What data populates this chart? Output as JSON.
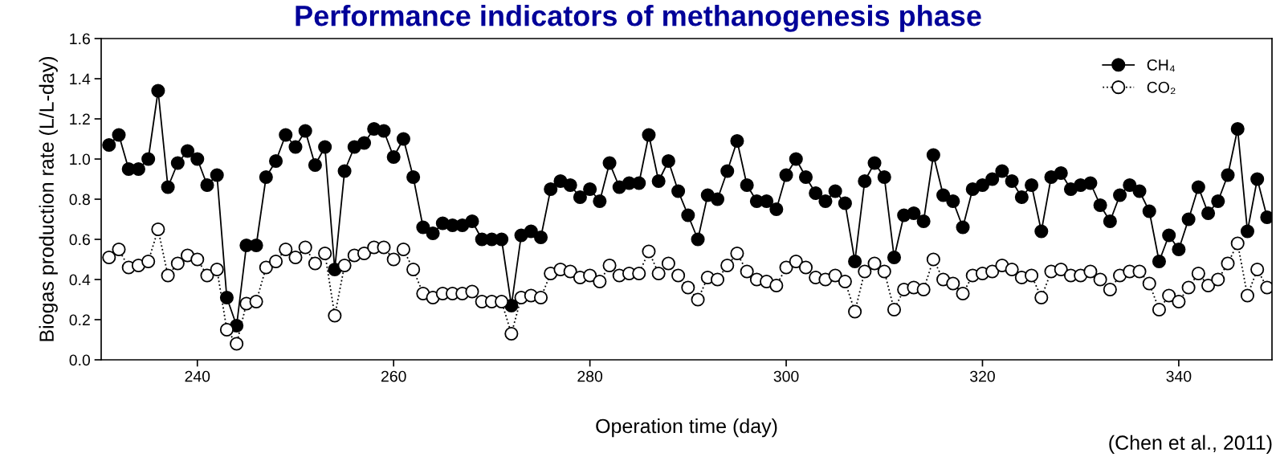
{
  "chart_data": {
    "type": "line",
    "title": "Performance indicators of methanogenesis phase",
    "xlabel": "Operation time (day)",
    "ylabel": "Biogas production rate (L/L-day)",
    "annotations": [
      "(Chen et al., 2011)"
    ],
    "x": [
      231,
      232,
      233,
      234,
      235,
      236,
      237,
      238,
      239,
      240,
      241,
      242,
      243,
      244,
      245,
      246,
      247,
      248,
      249,
      250,
      251,
      252,
      253,
      254,
      255,
      256,
      257,
      258,
      259,
      260,
      261,
      262,
      263,
      264,
      265,
      266,
      267,
      268,
      269,
      270,
      271,
      272,
      273,
      274,
      275,
      276,
      277,
      278,
      279,
      280,
      281,
      282,
      283,
      284,
      285,
      286,
      287,
      288,
      289,
      290,
      291,
      292,
      293,
      294,
      295,
      296,
      297,
      298,
      299,
      300,
      301,
      302,
      303,
      304,
      305,
      306,
      307,
      308,
      309,
      310,
      311,
      312,
      313,
      314,
      315,
      316,
      317,
      318,
      319,
      320,
      321,
      322,
      323,
      324,
      325,
      326,
      327,
      328,
      329,
      330,
      331,
      332,
      333,
      334,
      335,
      336,
      337,
      338,
      339,
      340,
      341,
      342,
      343,
      344,
      345,
      346,
      347,
      348,
      349
    ],
    "series": [
      {
        "name": "CH₄",
        "color": "#000000",
        "line_style": "solid",
        "values": [
          1.07,
          1.12,
          0.95,
          0.95,
          1.0,
          1.34,
          0.86,
          0.98,
          1.04,
          1.0,
          0.87,
          0.92,
          0.31,
          0.17,
          0.57,
          0.57,
          0.91,
          0.99,
          1.12,
          1.06,
          1.14,
          0.97,
          1.06,
          0.45,
          0.94,
          1.06,
          1.08,
          1.15,
          1.14,
          1.01,
          1.1,
          0.91,
          0.66,
          0.63,
          0.68,
          0.67,
          0.67,
          0.69,
          0.6,
          0.6,
          0.6,
          0.27,
          0.62,
          0.64,
          0.61,
          0.85,
          0.89,
          0.87,
          0.81,
          0.85,
          0.79,
          0.98,
          0.86,
          0.88,
          0.88,
          1.12,
          0.89,
          0.99,
          0.84,
          0.72,
          0.6,
          0.82,
          0.8,
          0.94,
          1.09,
          0.87,
          0.79,
          0.79,
          0.75,
          0.92,
          1.0,
          0.91,
          0.83,
          0.79,
          0.84,
          0.78,
          0.49,
          0.89,
          0.98,
          0.91,
          0.51,
          0.72,
          0.73,
          0.69,
          1.02,
          0.82,
          0.79,
          0.66,
          0.85,
          0.87,
          0.9,
          0.94,
          0.89,
          0.81,
          0.87,
          0.64,
          0.91,
          0.93,
          0.85,
          0.87,
          0.88,
          0.77,
          0.69,
          0.82,
          0.87,
          0.84,
          0.74,
          0.49,
          0.62,
          0.55,
          0.7,
          0.86,
          0.73,
          0.79,
          0.92,
          1.15,
          0.64,
          0.9,
          0.71
        ]
      },
      {
        "name": "CO₂",
        "color": "#ffffff",
        "line_style": "dotted",
        "values": [
          0.51,
          0.55,
          0.46,
          0.47,
          0.49,
          0.65,
          0.42,
          0.48,
          0.52,
          0.5,
          0.42,
          0.45,
          0.15,
          0.08,
          0.28,
          0.29,
          0.46,
          0.49,
          0.55,
          0.51,
          0.56,
          0.48,
          0.53,
          0.22,
          0.47,
          0.52,
          0.53,
          0.56,
          0.56,
          0.5,
          0.55,
          0.45,
          0.33,
          0.31,
          0.33,
          0.33,
          0.33,
          0.34,
          0.29,
          0.29,
          0.29,
          0.13,
          0.31,
          0.32,
          0.31,
          0.43,
          0.45,
          0.44,
          0.41,
          0.42,
          0.39,
          0.47,
          0.42,
          0.43,
          0.43,
          0.54,
          0.43,
          0.48,
          0.42,
          0.36,
          0.3,
          0.41,
          0.4,
          0.47,
          0.53,
          0.44,
          0.4,
          0.39,
          0.37,
          0.46,
          0.49,
          0.46,
          0.41,
          0.4,
          0.42,
          0.39,
          0.24,
          0.44,
          0.48,
          0.44,
          0.25,
          0.35,
          0.36,
          0.35,
          0.5,
          0.4,
          0.38,
          0.33,
          0.42,
          0.43,
          0.44,
          0.47,
          0.45,
          0.41,
          0.42,
          0.31,
          0.44,
          0.45,
          0.42,
          0.42,
          0.44,
          0.4,
          0.35,
          0.42,
          0.44,
          0.44,
          0.38,
          0.25,
          0.32,
          0.29,
          0.36,
          0.43,
          0.37,
          0.4,
          0.48,
          0.58,
          0.32,
          0.45,
          0.36
        ]
      }
    ],
    "xlim": [
      230.2,
      349.5
    ],
    "xticks": [
      240,
      260,
      280,
      300,
      320,
      340
    ],
    "ylim": [
      0,
      1.6
    ],
    "yticks": [
      {
        "value": 0,
        "label": "0.0"
      },
      {
        "value": 0.2,
        "label": "0.2"
      },
      {
        "value": 0.4,
        "label": "0.4"
      },
      {
        "value": 0.6,
        "label": "0.6"
      },
      {
        "value": 0.8,
        "label": "0.8"
      },
      {
        "value": 1.0,
        "label": "1.0"
      },
      {
        "value": 1.2,
        "label": "1.2"
      },
      {
        "value": 1.4,
        "label": "1.4"
      },
      {
        "value": 1.6,
        "label": "1.6"
      }
    ],
    "grid": false,
    "legend": "top right",
    "marker": "circle"
  }
}
